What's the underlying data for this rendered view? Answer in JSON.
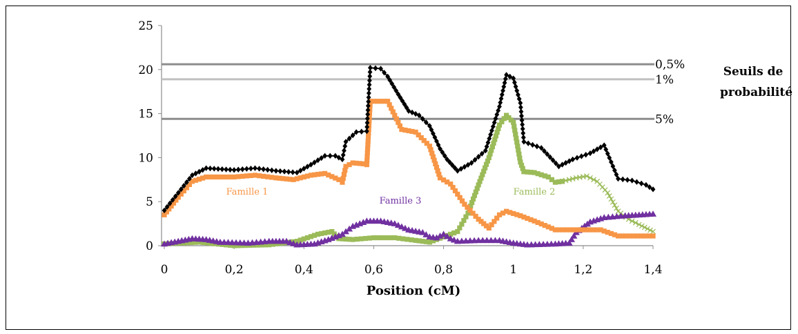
{
  "chart_data": {
    "type": "line",
    "xlabel": "Position (cM)",
    "ylabel": "",
    "xlim": [
      0,
      1.4
    ],
    "ylim": [
      0,
      25
    ],
    "xticks": [
      "0",
      "0,2",
      "0,4",
      "0,6",
      "0,8",
      "1",
      "1,2",
      "1,4"
    ],
    "yticks": [
      "0",
      "5",
      "10",
      "15",
      "20",
      "25"
    ],
    "grid": false,
    "legend_title": [
      "Seuils de",
      "probabilité"
    ],
    "thresholds": [
      {
        "label": "0,5%",
        "value": 20.6,
        "color": "#8c8c8c"
      },
      {
        "label": "1%",
        "value": 18.9,
        "color": "#c0c0c0"
      },
      {
        "label": "5%",
        "value": 14.4,
        "color": "#8c8c8c"
      }
    ],
    "series": [
      {
        "marker": "diamond",
        "color": "#000000",
        "points": [
          [
            0,
            4
          ],
          [
            0.04,
            6
          ],
          [
            0.08,
            8
          ],
          [
            0.12,
            8.8
          ],
          [
            0.2,
            8.6
          ],
          [
            0.26,
            8.8
          ],
          [
            0.32,
            8.5
          ],
          [
            0.38,
            8.3
          ],
          [
            0.42,
            9.2
          ],
          [
            0.46,
            10.2
          ],
          [
            0.49,
            10.2
          ],
          [
            0.51,
            9.8
          ],
          [
            0.52,
            11.8
          ],
          [
            0.55,
            12.9
          ],
          [
            0.58,
            13
          ],
          [
            0.59,
            20.2
          ],
          [
            0.62,
            20.1
          ],
          [
            0.64,
            19.2
          ],
          [
            0.67,
            17.2
          ],
          [
            0.7,
            15.3
          ],
          [
            0.73,
            14.8
          ],
          [
            0.76,
            13.6
          ],
          [
            0.79,
            11
          ],
          [
            0.81,
            9.8
          ],
          [
            0.84,
            8.5
          ],
          [
            0.88,
            9.4
          ],
          [
            0.92,
            10.8
          ],
          [
            0.96,
            15.8
          ],
          [
            0.98,
            19.4
          ],
          [
            1,
            19
          ],
          [
            1.02,
            16.2
          ],
          [
            1.03,
            11.8
          ],
          [
            1.08,
            11.1
          ],
          [
            1.13,
            9
          ],
          [
            1.17,
            9.8
          ],
          [
            1.22,
            10.5
          ],
          [
            1.26,
            11.4
          ],
          [
            1.3,
            7.6
          ],
          [
            1.34,
            7.4
          ],
          [
            1.38,
            6.9
          ],
          [
            1.4,
            6.4
          ]
        ]
      },
      {
        "name": "Famille 1",
        "marker": "square",
        "color": "#f79646",
        "points": [
          [
            0,
            3.5
          ],
          [
            0.04,
            5.5
          ],
          [
            0.08,
            7.3
          ],
          [
            0.12,
            7.8
          ],
          [
            0.2,
            7.8
          ],
          [
            0.26,
            8
          ],
          [
            0.32,
            7.7
          ],
          [
            0.37,
            7.5
          ],
          [
            0.42,
            8
          ],
          [
            0.46,
            8.2
          ],
          [
            0.5,
            7.5
          ],
          [
            0.51,
            7.2
          ],
          [
            0.52,
            9
          ],
          [
            0.54,
            9.4
          ],
          [
            0.57,
            9.3
          ],
          [
            0.58,
            9.2
          ],
          [
            0.59,
            16.4
          ],
          [
            0.64,
            16.4
          ],
          [
            0.68,
            13.2
          ],
          [
            0.72,
            12.9
          ],
          [
            0.76,
            11.3
          ],
          [
            0.79,
            7.7
          ],
          [
            0.82,
            7
          ],
          [
            0.86,
            4.7
          ],
          [
            0.9,
            3
          ],
          [
            0.93,
            2
          ],
          [
            0.96,
            3.5
          ],
          [
            0.98,
            3.9
          ],
          [
            1.02,
            3.4
          ],
          [
            1.06,
            2.8
          ],
          [
            1.12,
            1.8
          ],
          [
            1.25,
            1.8
          ],
          [
            1.3,
            1.1
          ],
          [
            1.4,
            1.1
          ]
        ]
      },
      {
        "name": "Famille 2",
        "marker": "square",
        "color": "#9bbb59",
        "points": [
          [
            0,
            0.2
          ],
          [
            0.1,
            0.4
          ],
          [
            0.2,
            0
          ],
          [
            0.3,
            0.1
          ],
          [
            0.38,
            0.5
          ],
          [
            0.44,
            1.3
          ],
          [
            0.48,
            1.6
          ],
          [
            0.5,
            0.8
          ],
          [
            0.54,
            0.7
          ],
          [
            0.6,
            0.9
          ],
          [
            0.66,
            0.9
          ],
          [
            0.72,
            0.6
          ],
          [
            0.76,
            0.4
          ],
          [
            0.8,
            1
          ],
          [
            0.84,
            1.6
          ],
          [
            0.87,
            3.7
          ],
          [
            0.9,
            6.9
          ],
          [
            0.93,
            10
          ],
          [
            0.96,
            13.7
          ],
          [
            0.98,
            14.8
          ],
          [
            1,
            14
          ],
          [
            1.02,
            9.5
          ],
          [
            1.03,
            8.4
          ],
          [
            1.06,
            8.3
          ],
          [
            1.1,
            7.8
          ],
          [
            1.12,
            7.2
          ],
          [
            1.14,
            7.3
          ]
        ]
      },
      {
        "marker": "x",
        "color": "#9bbb59",
        "points": [
          [
            1.14,
            7.3
          ],
          [
            1.18,
            7.7
          ],
          [
            1.21,
            7.9
          ],
          [
            1.24,
            7.3
          ],
          [
            1.27,
            6
          ],
          [
            1.3,
            3.9
          ],
          [
            1.33,
            3
          ],
          [
            1.36,
            2.4
          ],
          [
            1.4,
            1.6
          ]
        ]
      },
      {
        "name": "Famille 3",
        "marker": "triangle",
        "color": "#7030a0",
        "points": [
          [
            0,
            0.2
          ],
          [
            0.04,
            0.5
          ],
          [
            0.08,
            0.8
          ],
          [
            0.12,
            0.7
          ],
          [
            0.16,
            0.4
          ],
          [
            0.24,
            0.3
          ],
          [
            0.3,
            0.5
          ],
          [
            0.35,
            0.5
          ],
          [
            0.38,
            0.1
          ],
          [
            0.43,
            0.2
          ],
          [
            0.47,
            0.7
          ],
          [
            0.51,
            1.3
          ],
          [
            0.54,
            2.2
          ],
          [
            0.58,
            2.8
          ],
          [
            0.62,
            2.8
          ],
          [
            0.66,
            2.5
          ],
          [
            0.7,
            1.8
          ],
          [
            0.74,
            1.5
          ],
          [
            0.76,
            1
          ],
          [
            0.78,
            0.9
          ],
          [
            0.8,
            1.3
          ],
          [
            0.82,
            0.8
          ],
          [
            0.84,
            0.5
          ],
          [
            0.9,
            0.6
          ],
          [
            0.96,
            0.6
          ],
          [
            1,
            0.3
          ],
          [
            1.04,
            0.1
          ],
          [
            1.12,
            0.2
          ],
          [
            1.16,
            0.3
          ],
          [
            1.18,
            1.5
          ],
          [
            1.22,
            2.7
          ],
          [
            1.26,
            3.2
          ],
          [
            1.32,
            3.4
          ],
          [
            1.36,
            3.5
          ],
          [
            1.4,
            3.6
          ]
        ]
      }
    ]
  }
}
